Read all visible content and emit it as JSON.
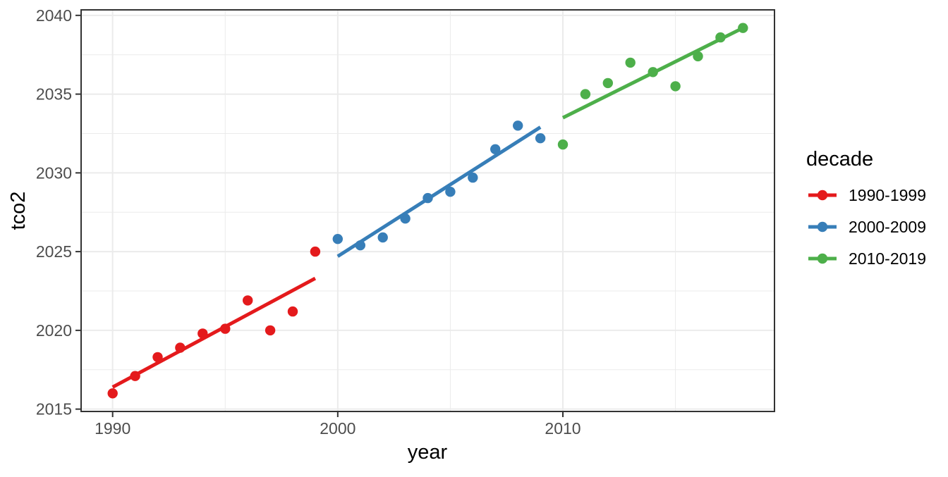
{
  "chart_data": {
    "type": "scatter",
    "title": "",
    "xlabel": "year",
    "ylabel": "tco2",
    "legend_title": "decade",
    "legend_position": "right",
    "grid": true,
    "xlim": [
      1988.6,
      2019.4
    ],
    "ylim": [
      2014.85,
      2040.35
    ],
    "x_major_ticks": [
      1990,
      2000,
      2010
    ],
    "x_minor_gridlines": [
      1995,
      2005,
      2015
    ],
    "y_major_ticks": [
      2015,
      2020,
      2025,
      2030,
      2035,
      2040
    ],
    "y_minor_gridlines": [
      2017.5,
      2022.5,
      2027.5,
      2032.5,
      2037.5
    ],
    "series": [
      {
        "name": "1990-1999",
        "color": "#E41A1C",
        "x": [
          1990,
          1991,
          1992,
          1993,
          1994,
          1995,
          1996,
          1997,
          1998,
          1999
        ],
        "y": [
          2016.0,
          2017.1,
          2018.3,
          2018.9,
          2019.8,
          2020.1,
          2021.9,
          2020.0,
          2021.2,
          2025.0
        ],
        "trend": {
          "x": [
            1990,
            1999
          ],
          "y": [
            2016.4,
            2023.3
          ]
        }
      },
      {
        "name": "2000-2009",
        "color": "#377EB8",
        "x": [
          2000,
          2001,
          2002,
          2003,
          2004,
          2005,
          2006,
          2007,
          2008,
          2009
        ],
        "y": [
          2025.8,
          2025.4,
          2025.9,
          2027.1,
          2028.4,
          2028.8,
          2029.7,
          2031.5,
          2033.0,
          2032.2
        ],
        "trend": {
          "x": [
            2000,
            2009
          ],
          "y": [
            2024.7,
            2032.9
          ]
        }
      },
      {
        "name": "2010-2019",
        "color": "#4DAF4A",
        "x": [
          2010,
          2011,
          2012,
          2013,
          2014,
          2015,
          2016,
          2017,
          2018
        ],
        "y": [
          2031.8,
          2035.0,
          2035.7,
          2037.0,
          2036.4,
          2035.5,
          2037.4,
          2038.6,
          2039.2
        ],
        "trend": {
          "x": [
            2010,
            2018
          ],
          "y": [
            2033.5,
            2039.2
          ]
        }
      }
    ],
    "style": {
      "background": "#FFFFFF",
      "panel_background": "#FFFFFF",
      "grid_color": "#EBEBEB",
      "panel_border_color": "#333333",
      "tick_color": "#333333",
      "tick_label_color": "#4D4D4D",
      "title_color": "#000000",
      "legend_text_color": "#000000"
    }
  }
}
